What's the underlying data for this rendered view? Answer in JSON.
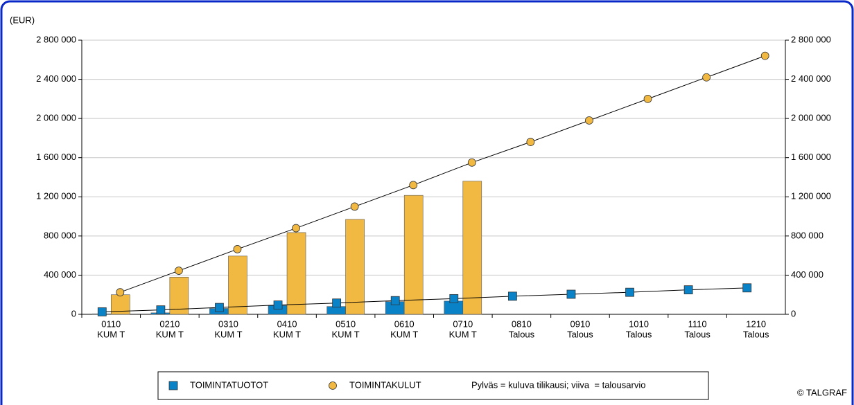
{
  "chart_data": {
    "type": "bar-line",
    "unit_label": "(EUR)",
    "credit": "© TALGRAF",
    "note": "Pylväs = kuluva tilikausi; viiva  = talousarvio",
    "categories": [
      [
        "0110",
        "KUM T"
      ],
      [
        "0210",
        "KUM T"
      ],
      [
        "0310",
        "KUM T"
      ],
      [
        "0410",
        "KUM T"
      ],
      [
        "0510",
        "KUM T"
      ],
      [
        "0610",
        "KUM T"
      ],
      [
        "0710",
        "KUM T"
      ],
      [
        "0810",
        "Talous"
      ],
      [
        "0910",
        "Talous"
      ],
      [
        "1010",
        "Talous"
      ],
      [
        "1110",
        "Talous"
      ],
      [
        "1210",
        "Talous"
      ]
    ],
    "series": [
      {
        "name": "TOIMINTATUOTOT",
        "color": "#0a82c8",
        "marker": "square",
        "bar_values": [
          5000,
          15000,
          60000,
          90000,
          80000,
          130000,
          135000,
          null,
          null,
          null,
          null,
          null
        ],
        "line_values": [
          25000,
          45000,
          70000,
          95000,
          115000,
          140000,
          160000,
          185000,
          205000,
          225000,
          250000,
          270000
        ]
      },
      {
        "name": "TOIMINTAKULUT",
        "color": "#f2b942",
        "marker": "circle",
        "bar_values": [
          200000,
          380000,
          595000,
          835000,
          970000,
          1215000,
          1360000,
          null,
          null,
          null,
          null,
          null
        ],
        "line_values": [
          225000,
          445000,
          665000,
          880000,
          1100000,
          1320000,
          1550000,
          1760000,
          1980000,
          2200000,
          2420000,
          2640000
        ]
      }
    ],
    "ylim": [
      0,
      2800000
    ],
    "yticks": [
      0,
      {
        "value": 400000,
        "label": "400 000"
      },
      {
        "value": 800000,
        "label": "800 000"
      },
      {
        "value": 1200000,
        "label": "1 200 000"
      },
      {
        "value": 1600000,
        "label": "1 600 000"
      },
      {
        "value": 2000000,
        "label": "2 000 000"
      },
      {
        "value": 2400000,
        "label": "2 400 000"
      },
      {
        "value": 2800000,
        "label": "2 800 000"
      }
    ],
    "grid": true
  }
}
